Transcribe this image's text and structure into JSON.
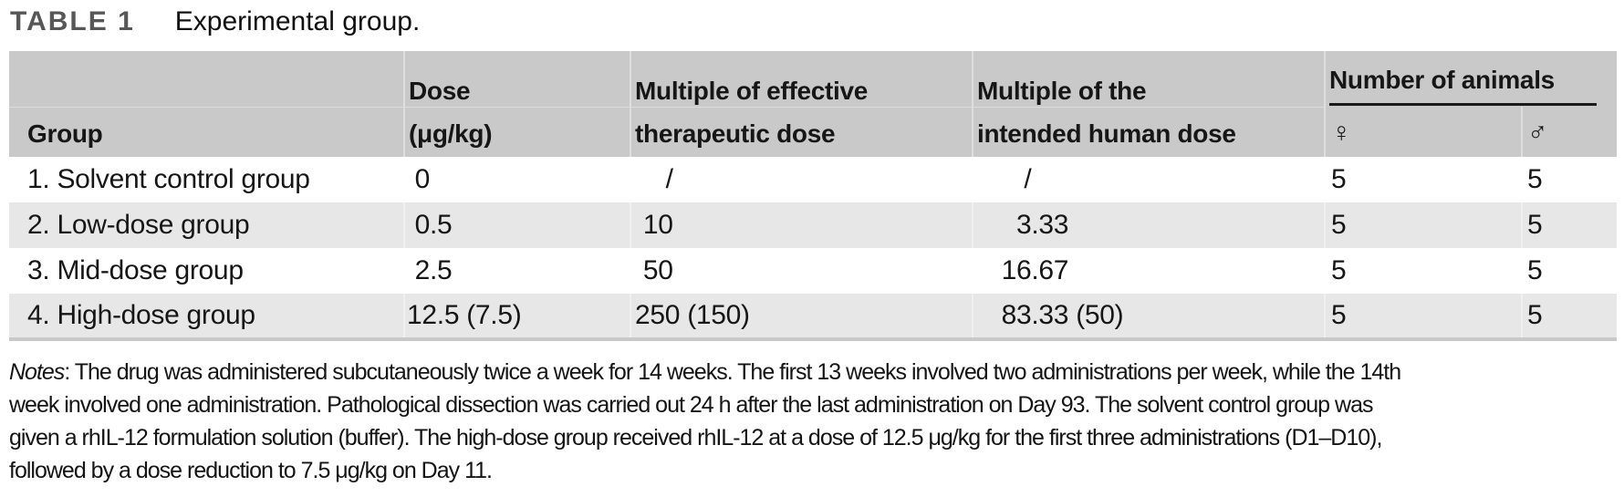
{
  "title": {
    "label": "TABLE 1",
    "caption": "Experimental group."
  },
  "table": {
    "spanner": "Number of animals",
    "columns": {
      "group": "Group",
      "dose_top": "Dose",
      "dose_bottom": "(μg/kg)",
      "mult_eff_top": "Multiple of effective",
      "mult_eff_bottom": "therapeutic dose",
      "mult_hum_top": "Multiple of the",
      "mult_hum_bottom": "intended human dose",
      "female": "♀",
      "male": "♂"
    },
    "rows": [
      {
        "group": "1. Solvent control group",
        "dose": "0",
        "mult_eff": "/",
        "mult_hum": "/",
        "female": "5",
        "male": "5"
      },
      {
        "group": "2. Low-dose group",
        "dose": "0.5",
        "mult_eff": "10",
        "mult_hum": "3.33",
        "female": "5",
        "male": "5"
      },
      {
        "group": "3. Mid-dose group",
        "dose": "2.5",
        "mult_eff": "50",
        "mult_hum": "16.67",
        "female": "5",
        "male": "5"
      },
      {
        "group": "4. High-dose group",
        "dose": "12.5 (7.5)",
        "mult_eff": "250 (150)",
        "mult_hum": "83.33 (50)",
        "female": "5",
        "male": "5"
      }
    ]
  },
  "notes": {
    "label": "Notes",
    "lines": [
      ": The drug was administered subcutaneously twice a week for 14 weeks. The first 13 weeks involved two administrations per week, while the 14th",
      "week involved one administration. Pathological dissection was carried out 24 h after the last administration on Day 93. The solvent control group was",
      "given a rhIL-12 formulation solution (buffer). The high-dose group received rhIL-12 at a dose of 12.5 μg/kg for the first three administrations (D1–D10),",
      "followed by a dose reduction to 7.5 μg/kg on Day 11."
    ]
  },
  "colors": {
    "header_bg": "#c9c9c9",
    "stripe_bg": "#e7e7e7",
    "title_label": "#575757",
    "text": "#161616",
    "table_bottom_border": "#c9c9c9"
  }
}
